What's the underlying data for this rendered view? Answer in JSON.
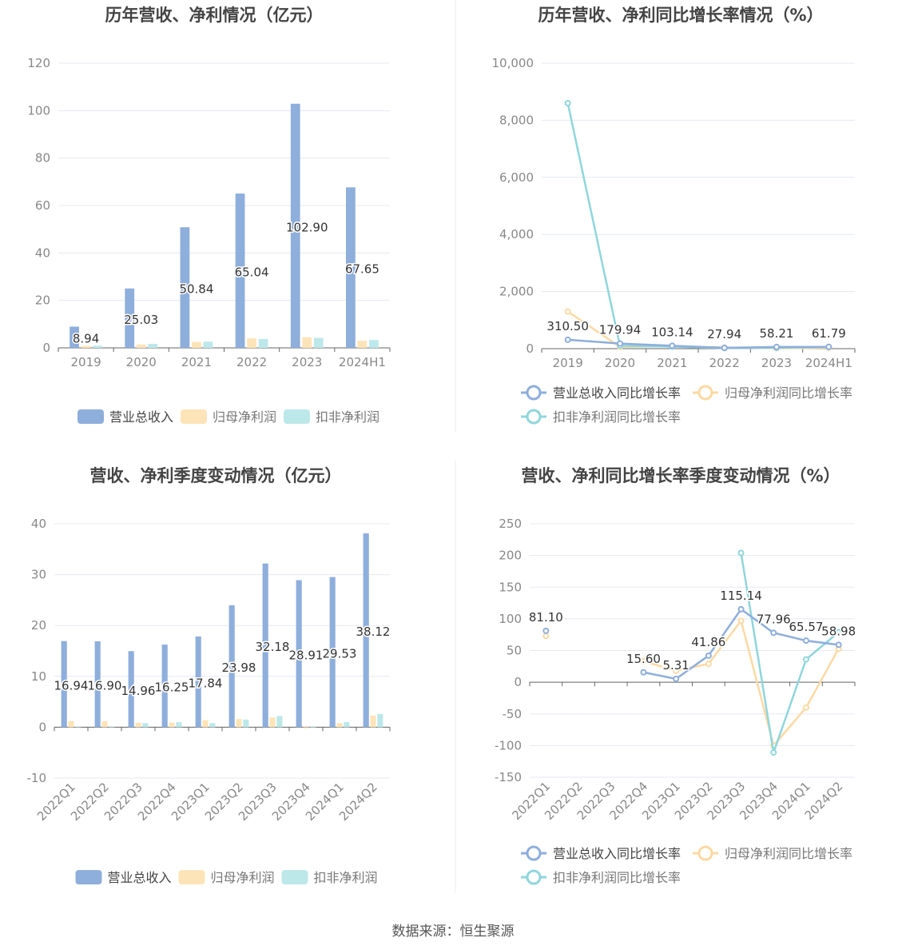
{
  "colors": {
    "revenue": "#8eaedc",
    "parent_profit": "#fde4b8",
    "deducted_profit": "#bde8ea",
    "line_revenue": "#8eaedc",
    "line_parent": "#fcd9a3",
    "line_deducted": "#8fd6dc",
    "grid": "#e4e8f0",
    "axis": "#666666",
    "label": "#888888",
    "title": "#444444"
  },
  "source": "数据来源：恒生聚源",
  "chart_data": [
    {
      "id": "annual_amount",
      "type": "bar",
      "title": "历年营收、净利情况（亿元）",
      "categories": [
        "2019",
        "2020",
        "2021",
        "2022",
        "2023",
        "2024H1"
      ],
      "ylim": [
        0,
        120
      ],
      "yticks": [
        "0",
        "20",
        "40",
        "60",
        "80",
        "100",
        "120"
      ],
      "grid": true,
      "legend": "bottom",
      "series": [
        {
          "name": "营业总收入",
          "values": [
            8.94,
            25.03,
            50.84,
            65.04,
            102.9,
            67.65
          ],
          "labels": [
            "8.94",
            "25.03",
            "50.84",
            "65.04",
            "102.90",
            "67.65"
          ]
        },
        {
          "name": "归母净利润",
          "values": [
            0.8,
            1.4,
            2.5,
            4.0,
            4.5,
            3.0
          ]
        },
        {
          "name": "扣非净利润",
          "values": [
            0.9,
            1.7,
            2.6,
            3.7,
            4.2,
            3.3
          ]
        }
      ]
    },
    {
      "id": "annual_growth",
      "type": "line",
      "title": "历年营收、净利同比增长率情况（%）",
      "categories": [
        "2019",
        "2020",
        "2021",
        "2022",
        "2023",
        "2024H1"
      ],
      "ylim": [
        0,
        10000
      ],
      "yticks": [
        "0",
        "2,000",
        "4,000",
        "6,000",
        "8,000",
        "10,000"
      ],
      "grid": true,
      "legend": "bottom",
      "series": [
        {
          "name": "营业总收入同比增长率",
          "values": [
            310.5,
            179.94,
            103.14,
            27.94,
            58.21,
            61.79
          ],
          "labels": [
            "310.50",
            "179.94",
            "103.14",
            "27.94",
            "58.21",
            "61.79"
          ]
        },
        {
          "name": "归母净利润同比增长率",
          "values": [
            1300,
            60,
            90,
            40,
            15,
            30
          ]
        },
        {
          "name": "扣非净利润同比增长率",
          "values": [
            8600,
            100,
            70,
            20,
            30,
            60
          ]
        }
      ]
    },
    {
      "id": "quarterly_amount",
      "type": "bar",
      "title": "营收、净利季度变动情况（亿元）",
      "categories": [
        "2022Q1",
        "2022Q2",
        "2022Q3",
        "2022Q4",
        "2023Q1",
        "2023Q2",
        "2023Q3",
        "2023Q4",
        "2024Q1",
        "2024Q2"
      ],
      "ylim": [
        -10,
        40
      ],
      "yticks": [
        "-10",
        "0",
        "10",
        "20",
        "30",
        "40"
      ],
      "grid": true,
      "legend": "bottom",
      "series": [
        {
          "name": "营业总收入",
          "values": [
            16.94,
            16.9,
            14.96,
            16.25,
            17.84,
            23.98,
            32.18,
            28.91,
            29.53,
            38.12
          ],
          "labels": [
            "16.94",
            "16.90",
            "14.96",
            "16.25",
            "17.84",
            "23.98",
            "32.18",
            "28.91",
            "29.53",
            "38.12"
          ]
        },
        {
          "name": "归母净利润",
          "values": [
            1.2,
            1.2,
            0.9,
            0.9,
            1.4,
            1.6,
            1.9,
            -0.2,
            0.8,
            2.3
          ]
        },
        {
          "name": "扣非净利润",
          "values": [
            0.0,
            0.0,
            0.8,
            1.0,
            0.8,
            1.5,
            2.2,
            -0.1,
            1.0,
            2.6
          ]
        }
      ]
    },
    {
      "id": "quarterly_growth",
      "type": "line",
      "title": "营收、净利同比增长率季度变动情况（%）",
      "categories": [
        "2022Q1",
        "2022Q2",
        "2022Q3",
        "2022Q4",
        "2023Q1",
        "2023Q2",
        "2023Q3",
        "2023Q4",
        "2024Q1",
        "2024Q2"
      ],
      "ylim": [
        -150,
        250
      ],
      "yticks": [
        "-150",
        "-100",
        "-50",
        "0",
        "50",
        "100",
        "150",
        "200",
        "250"
      ],
      "grid": true,
      "legend": "bottom",
      "series": [
        {
          "name": "营业总收入同比增长率",
          "values": [
            81.1,
            null,
            null,
            15.6,
            5.31,
            41.86,
            115.14,
            77.96,
            65.57,
            58.98
          ],
          "labels": [
            "81.10",
            null,
            null,
            "15.60",
            "5.31",
            "41.86",
            "115.14",
            "77.96",
            "65.57",
            "58.98"
          ]
        },
        {
          "name": "归母净利润同比增长率",
          "values": [
            73,
            null,
            null,
            33,
            18,
            29,
            97,
            -100,
            -40,
            53
          ]
        },
        {
          "name": "扣非净利润同比增长率",
          "values": [
            null,
            null,
            null,
            null,
            null,
            null,
            204,
            -111,
            36,
            79
          ]
        }
      ]
    }
  ]
}
